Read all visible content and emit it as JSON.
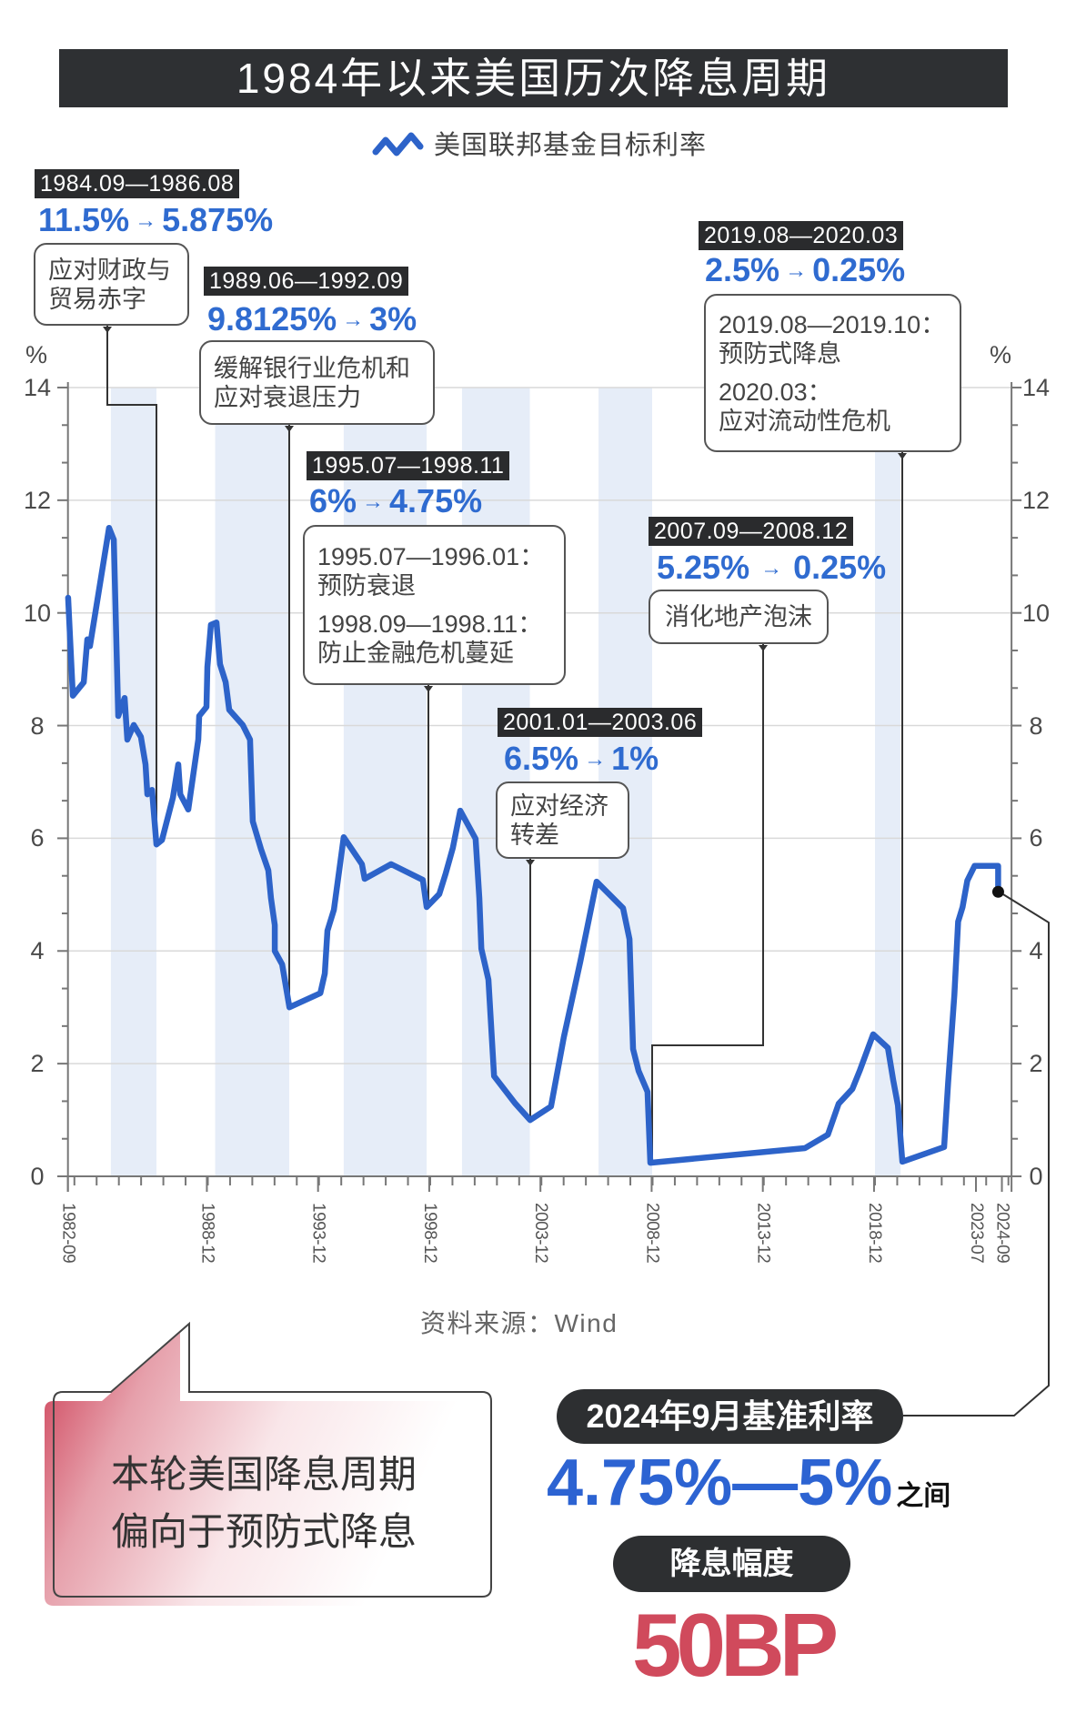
{
  "header": {
    "title": "1984年以来美国历次降息周期"
  },
  "legend": {
    "icon": "zigzag-line-icon",
    "label": "美国联邦基金目标利率"
  },
  "axes": {
    "left_unit": "%",
    "right_unit": "%"
  },
  "annotations": [
    {
      "period": "1984.09—1986.08",
      "from": "11.5%",
      "arrow": "→",
      "to": "5.875%",
      "reason_lines": [
        "应对财政与",
        "贸易赤字"
      ]
    },
    {
      "period": "1989.06—1992.09",
      "from": "9.8125%",
      "arrow": "→",
      "to": "3%",
      "reason_lines": [
        "缓解银行业危机和",
        "应对衰退压力"
      ]
    },
    {
      "period": "1995.07—1998.11",
      "from": "6%",
      "arrow": "→",
      "to": "4.75%",
      "details": [
        {
          "period": "1995.07—1996.01：",
          "reason": "预防衰退"
        },
        {
          "period": "1998.09—1998.11：",
          "reason": "防止金融危机蔓延"
        }
      ]
    },
    {
      "period": "2001.01—2003.06",
      "from": "6.5%",
      "arrow": "→",
      "to": "1%",
      "reason_lines": [
        "应对经济",
        "转差"
      ]
    },
    {
      "period": "2007.09—2008.12",
      "from": "5.25%",
      "arrow": "→",
      "to": "0.25%",
      "reason_lines": [
        "消化地产泡沫"
      ]
    },
    {
      "period": "2019.08—2020.03",
      "from": "2.5%",
      "arrow": "→",
      "to": "0.25%",
      "details": [
        {
          "period": "2019.08—2019.10：",
          "reason": "预防式降息"
        },
        {
          "period": "2020.03：",
          "reason": "应对流动性危机"
        }
      ]
    }
  ],
  "source": "资料来源：Wind",
  "callout": {
    "lines": [
      "本轮美国降息周期",
      "偏向于预防式降息"
    ]
  },
  "summary": {
    "rate_label": "2024年9月基准利率",
    "rate_range": "4.75%—5%",
    "rate_suffix": "之间",
    "cut_label": "降息幅度",
    "cut_value": "50BP"
  },
  "colors": {
    "title_bg": "#2e3033",
    "accent_blue": "#2f6bd0",
    "line_blue": "#2d63c9",
    "band_fill": "#e6edf8",
    "grid": "#d9d9d9",
    "axis": "#777777",
    "connector": "#333333",
    "highlight_red": "#d04a5c",
    "pill_bg": "#2d2f31"
  },
  "chart_data": {
    "type": "line",
    "title": "1984年以来美国历次降息周期",
    "xlabel": "",
    "ylabel": "%",
    "ylim": [
      0,
      14
    ],
    "yticks": [
      0,
      2,
      4,
      6,
      8,
      10,
      12,
      14
    ],
    "xlim": [
      1982.67,
      2025.1
    ],
    "x_tick_labels": [
      "1982-09",
      "1988-12",
      "1993-12",
      "1998-12",
      "2003-12",
      "2008-12",
      "2013-12",
      "2018-12",
      "2023-07",
      "2024-09"
    ],
    "grid": true,
    "legend_position": "top-center",
    "series": [
      {
        "name": "美国联邦基金目标利率",
        "points": [
          [
            1982.68,
            10.27
          ],
          [
            1982.89,
            8.53
          ],
          [
            1983.38,
            8.77
          ],
          [
            1983.54,
            9.53
          ],
          [
            1983.66,
            9.41
          ],
          [
            1984.52,
            11.51
          ],
          [
            1984.73,
            11.3
          ],
          [
            1984.93,
            8.17
          ],
          [
            1985.22,
            8.49
          ],
          [
            1985.34,
            7.75
          ],
          [
            1985.63,
            8.01
          ],
          [
            1985.95,
            7.8
          ],
          [
            1986.16,
            7.31
          ],
          [
            1986.24,
            6.78
          ],
          [
            1986.45,
            6.86
          ],
          [
            1986.65,
            5.89
          ],
          [
            1986.9,
            5.97
          ],
          [
            1987.39,
            6.72
          ],
          [
            1987.63,
            7.31
          ],
          [
            1987.72,
            6.78
          ],
          [
            1988.08,
            6.51
          ],
          [
            1988.53,
            7.75
          ],
          [
            1988.57,
            8.17
          ],
          [
            1988.9,
            8.33
          ],
          [
            1988.94,
            9.04
          ],
          [
            1989.1,
            9.79
          ],
          [
            1989.35,
            9.83
          ],
          [
            1989.51,
            9.09
          ],
          [
            1989.76,
            8.77
          ],
          [
            1989.92,
            8.28
          ],
          [
            1990.53,
            8.01
          ],
          [
            1990.86,
            7.75
          ],
          [
            1990.98,
            6.3
          ],
          [
            1991.35,
            5.81
          ],
          [
            1991.68,
            5.43
          ],
          [
            1991.8,
            4.94
          ],
          [
            1991.97,
            4.46
          ],
          [
            1991.97,
            4.0
          ],
          [
            1992.3,
            3.76
          ],
          [
            1992.63,
            3.0
          ],
          [
            1994.02,
            3.25
          ],
          [
            1994.22,
            3.6
          ],
          [
            1994.34,
            4.36
          ],
          [
            1994.63,
            4.73
          ],
          [
            1995.07,
            6.02
          ],
          [
            1995.89,
            5.54
          ],
          [
            1996.01,
            5.28
          ],
          [
            1997.2,
            5.54
          ],
          [
            1998.63,
            5.26
          ],
          [
            1998.8,
            4.78
          ],
          [
            1999.37,
            5.01
          ],
          [
            1999.66,
            5.38
          ],
          [
            1999.98,
            5.83
          ],
          [
            2000.31,
            6.49
          ],
          [
            2001.0,
            5.99
          ],
          [
            2001.17,
            4.94
          ],
          [
            2001.26,
            4.04
          ],
          [
            2001.58,
            3.49
          ],
          [
            2001.83,
            1.78
          ],
          [
            2002.79,
            1.29
          ],
          [
            2003.45,
            1.0
          ],
          [
            2004.39,
            1.24
          ],
          [
            2004.97,
            2.47
          ],
          [
            2005.3,
            3.07
          ],
          [
            2005.71,
            3.81
          ],
          [
            2006.44,
            5.23
          ],
          [
            2007.63,
            4.76
          ],
          [
            2007.92,
            4.21
          ],
          [
            2008.08,
            2.26
          ],
          [
            2008.33,
            1.87
          ],
          [
            2008.73,
            1.5
          ],
          [
            2008.86,
            0.24
          ],
          [
            2015.81,
            0.5
          ],
          [
            2016.84,
            0.74
          ],
          [
            2017.33,
            1.29
          ],
          [
            2017.94,
            1.55
          ],
          [
            2018.27,
            1.87
          ],
          [
            2018.88,
            2.52
          ],
          [
            2019.54,
            2.28
          ],
          [
            2019.78,
            1.71
          ],
          [
            2019.99,
            1.26
          ],
          [
            2020.19,
            0.26
          ],
          [
            2022.07,
            0.52
          ],
          [
            2022.25,
            1.66
          ],
          [
            2022.53,
            3.23
          ],
          [
            2022.7,
            4.52
          ],
          [
            2022.9,
            4.78
          ],
          [
            2023.11,
            5.25
          ],
          [
            2023.44,
            5.51
          ],
          [
            2024.5,
            5.51
          ],
          [
            2024.5,
            5.05
          ]
        ]
      }
    ],
    "shaded_bands": [
      {
        "label": "1984.09—1986.08",
        "start": 1984.6,
        "end": 1986.65
      },
      {
        "label": "1989.06—1992.09",
        "start": 1989.29,
        "end": 1992.62
      },
      {
        "label": "1995.07—1998.11",
        "start": 1995.07,
        "end": 1998.8
      },
      {
        "label": "2001.01—2003.06",
        "start": 2000.39,
        "end": 2003.44
      },
      {
        "label": "2007.09—2008.12",
        "start": 2006.53,
        "end": 2008.94
      },
      {
        "label": "2019.08—2020.03",
        "start": 2018.96,
        "end": 2020.11
      }
    ],
    "easing_cycles": [
      {
        "period": "1984.09—1986.08",
        "start_rate": 11.5,
        "end_rate": 5.875,
        "reason": "应对财政与贸易赤字"
      },
      {
        "period": "1989.06—1992.09",
        "start_rate": 9.8125,
        "end_rate": 3,
        "reason": "缓解银行业危机和应对衰退压力"
      },
      {
        "period": "1995.07—1998.11",
        "start_rate": 6,
        "end_rate": 4.75,
        "reason": "1995.07—1996.01 预防衰退; 1998.09—1998.11 防止金融危机蔓延"
      },
      {
        "period": "2001.01—2003.06",
        "start_rate": 6.5,
        "end_rate": 1,
        "reason": "应对经济转差"
      },
      {
        "period": "2007.09—2008.12",
        "start_rate": 5.25,
        "end_rate": 0.25,
        "reason": "消化地产泡沫"
      },
      {
        "period": "2019.08—2020.03",
        "start_rate": 2.5,
        "end_rate": 0.25,
        "reason": "2019.08—2019.10 预防式降息; 2020.03 应对流动性危机"
      }
    ],
    "highlight_point": {
      "date": "2024-09",
      "range": "4.75%—5%",
      "cut": "50BP"
    },
    "source": "Wind"
  }
}
